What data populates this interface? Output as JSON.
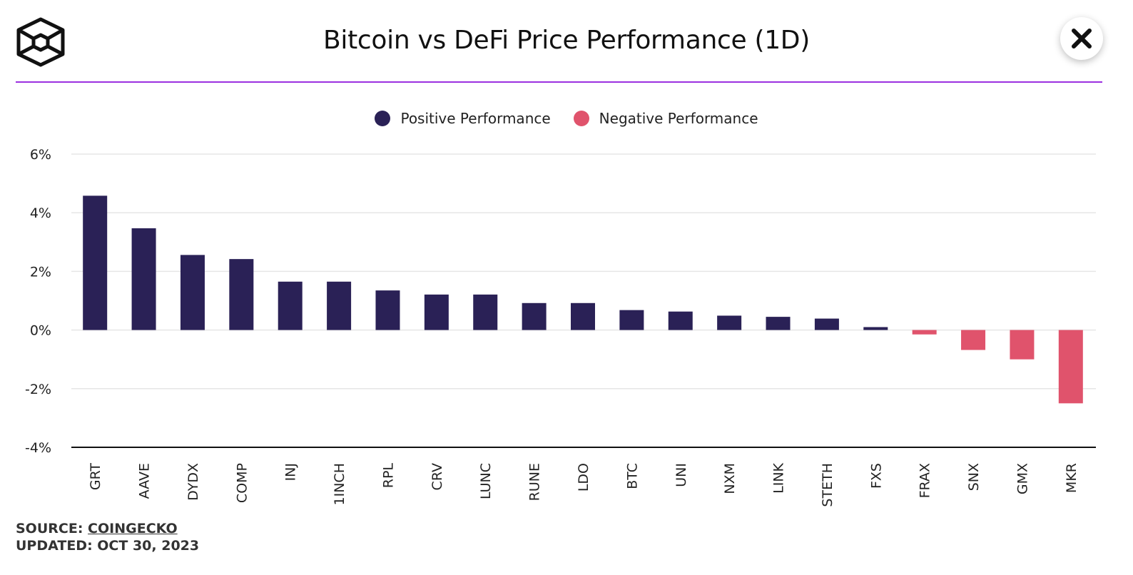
{
  "header": {
    "title": "Bitcoin vs DeFi Price Performance (1D)",
    "logo_icon": "cube-logo-icon",
    "close_icon": "close-icon"
  },
  "colors": {
    "positive": "#2a2156",
    "negative": "#e0536c",
    "divider": "#9b30e0",
    "grid": "#e6e6e6"
  },
  "legend": {
    "positive_label": "Positive Performance",
    "negative_label": "Negative Performance"
  },
  "chart_data": {
    "type": "bar",
    "title": "Bitcoin vs DeFi Price Performance (1D)",
    "xlabel": "",
    "ylabel": "",
    "ylim": [
      -4,
      6
    ],
    "yticks": [
      6,
      4,
      2,
      0,
      -2,
      -4
    ],
    "ytick_labels": [
      "6%",
      "4%",
      "2%",
      "0%",
      "-2%",
      "-4%"
    ],
    "grid": true,
    "legend_position": "top-center",
    "categories": [
      "GRT",
      "AAVE",
      "DYDX",
      "COMP",
      "INJ",
      "1INCH",
      "RPL",
      "CRV",
      "LUNC",
      "RUNE",
      "LDO",
      "BTC",
      "UNI",
      "NXM",
      "LINK",
      "STETH",
      "FXS",
      "FRAX",
      "SNX",
      "GMX",
      "MKR"
    ],
    "values": [
      4.58,
      3.47,
      2.56,
      2.42,
      1.65,
      1.65,
      1.35,
      1.21,
      1.21,
      0.92,
      0.92,
      0.68,
      0.63,
      0.49,
      0.45,
      0.39,
      0.1,
      -0.15,
      -0.68,
      -1.0,
      -2.5
    ]
  },
  "footer": {
    "source_label": "SOURCE:",
    "source_link": "COINGECKO",
    "updated_label": "UPDATED: OCT 30, 2023"
  }
}
